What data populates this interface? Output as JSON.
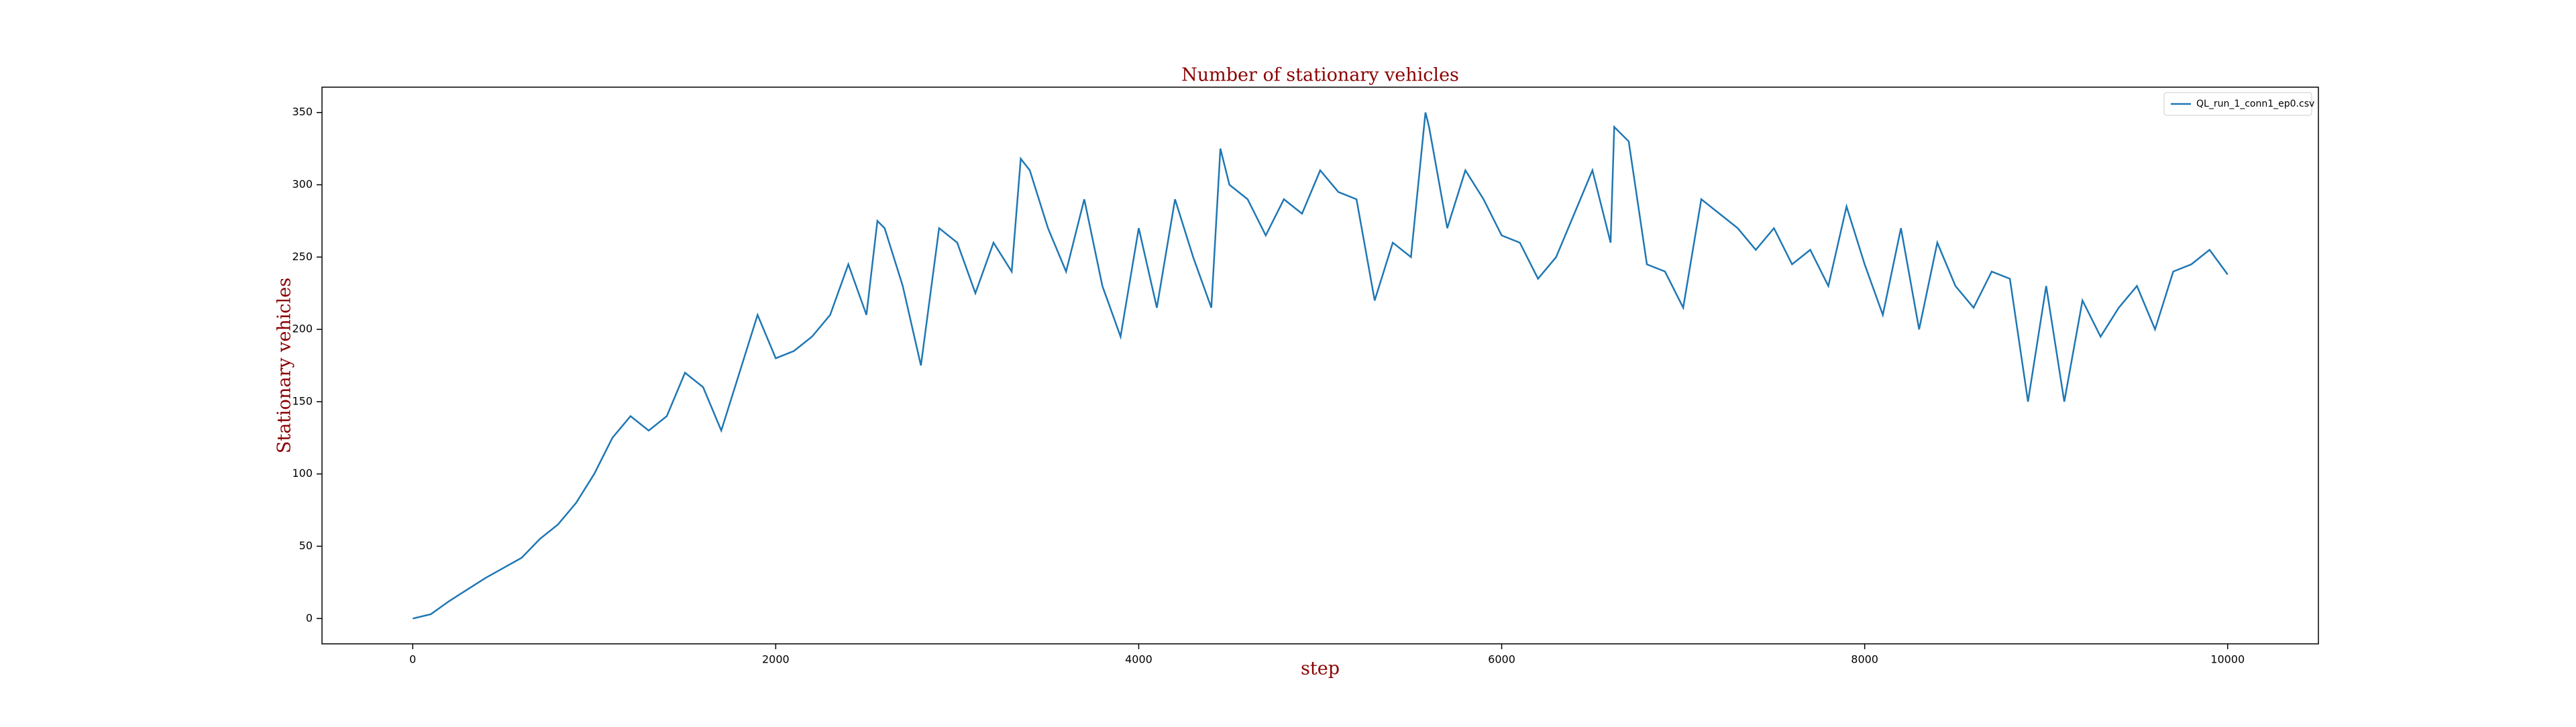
{
  "chart_data": {
    "type": "line",
    "title": "Number of stationary vehicles",
    "xlabel": "step",
    "ylabel": "Stationary vehicles",
    "x": [
      0,
      100,
      200,
      300,
      400,
      500,
      600,
      700,
      800,
      900,
      1000,
      1100,
      1200,
      1300,
      1400,
      1500,
      1600,
      1700,
      1800,
      1900,
      2000,
      2100,
      2200,
      2300,
      2400,
      2500,
      2560,
      2600,
      2700,
      2800,
      2900,
      3000,
      3100,
      3200,
      3300,
      3350,
      3400,
      3500,
      3600,
      3700,
      3800,
      3900,
      4000,
      4100,
      4200,
      4300,
      4400,
      4450,
      4500,
      4600,
      4700,
      4800,
      4900,
      5000,
      5100,
      5200,
      5300,
      5400,
      5500,
      5580,
      5600,
      5700,
      5800,
      5900,
      6000,
      6100,
      6200,
      6300,
      6400,
      6500,
      6600,
      6620,
      6700,
      6800,
      6900,
      7000,
      7100,
      7200,
      7300,
      7400,
      7500,
      7600,
      7700,
      7800,
      7900,
      8000,
      8100,
      8200,
      8300,
      8400,
      8500,
      8600,
      8700,
      8800,
      8900,
      9000,
      9100,
      9200,
      9300,
      9400,
      9500,
      9600,
      9700,
      9800,
      9900,
      10000
    ],
    "series": [
      {
        "name": "QL_run_1_conn1_ep0.csv",
        "color": "#1f77b4",
        "values": [
          0,
          3,
          12,
          20,
          28,
          35,
          42,
          55,
          65,
          80,
          100,
          125,
          140,
          130,
          140,
          170,
          160,
          130,
          170,
          210,
          180,
          185,
          195,
          210,
          245,
          210,
          275,
          270,
          230,
          175,
          270,
          260,
          225,
          260,
          240,
          318,
          310,
          270,
          240,
          290,
          230,
          195,
          270,
          215,
          290,
          250,
          215,
          325,
          300,
          290,
          265,
          290,
          280,
          310,
          295,
          290,
          220,
          260,
          250,
          350,
          340,
          270,
          310,
          290,
          265,
          260,
          235,
          250,
          280,
          310,
          260,
          340,
          330,
          245,
          240,
          215,
          290,
          280,
          270,
          255,
          270,
          245,
          255,
          230,
          285,
          245,
          210,
          270,
          200,
          260,
          230,
          215,
          240,
          235,
          150,
          230,
          150,
          220,
          195,
          215,
          230,
          200,
          240,
          245,
          255,
          238
        ]
      }
    ],
    "xlim": [
      -500,
      10500
    ],
    "ylim": [
      -17.5,
      367.5
    ],
    "xticks": [
      0,
      2000,
      4000,
      6000,
      8000,
      10000
    ],
    "yticks": [
      0,
      50,
      100,
      150,
      200,
      250,
      300,
      350
    ],
    "legend": "upper right"
  }
}
